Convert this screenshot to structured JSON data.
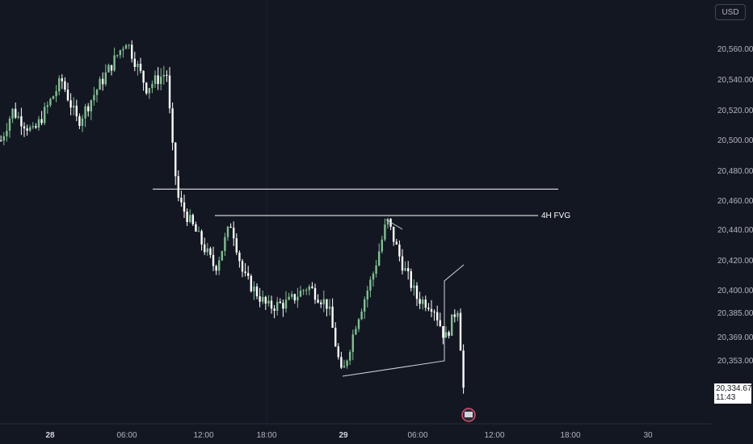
{
  "currency_label": "USD",
  "last_price": "20,334.67",
  "countdown": "11:43",
  "annotation_label": "4H FVG",
  "colors": {
    "background": "#131722",
    "up": "#80c08f",
    "down": "#ffffff",
    "text": "#b2b5be",
    "line": "#ffffff"
  },
  "chart_data": {
    "type": "candlestick",
    "y_ticks": [
      {
        "value": 20560,
        "label": "20,560.00"
      },
      {
        "value": 20540,
        "label": "20,540.00"
      },
      {
        "value": 20520,
        "label": "20,520.00"
      },
      {
        "value": 20500,
        "label": "20,500.00"
      },
      {
        "value": 20480,
        "label": "20,480.00"
      },
      {
        "value": 20460,
        "label": "20,460.00"
      },
      {
        "value": 20440,
        "label": "20,440.00"
      },
      {
        "value": 20420,
        "label": "20,420.00"
      },
      {
        "value": 20400,
        "label": "20,400.00"
      },
      {
        "value": 20385,
        "label": "20,385.00"
      },
      {
        "value": 20369,
        "label": "20,369.00"
      },
      {
        "value": 20353,
        "label": "20,353.00"
      }
    ],
    "x_ticks": [
      {
        "label": "28",
        "major": true
      },
      {
        "label": "06:00",
        "major": false
      },
      {
        "label": "12:00",
        "major": false
      },
      {
        "label": "18:00",
        "major": false
      },
      {
        "label": "29",
        "major": true
      },
      {
        "label": "06:00",
        "major": false
      },
      {
        "label": "12:00",
        "major": false
      },
      {
        "label": "18:00",
        "major": false
      },
      {
        "label": "30",
        "major": false
      }
    ],
    "key_points": [
      {
        "label": "day-28-high",
        "value": 20566
      },
      {
        "label": "drop-low",
        "value": 20381
      },
      {
        "label": "day-29-low",
        "value": 20342
      },
      {
        "label": "rebound-high",
        "value": 20447
      },
      {
        "label": "last",
        "value": 20334.67
      }
    ],
    "levels": [
      {
        "name": "upper-level",
        "price": 20468
      },
      {
        "name": "4H FVG",
        "price": 20450
      }
    ]
  }
}
